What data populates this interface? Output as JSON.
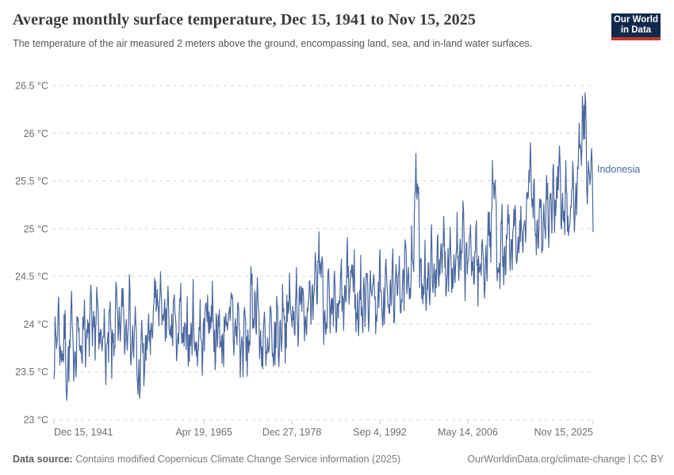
{
  "header": {
    "logo": {
      "line1": "Our World",
      "line2": "in Data",
      "bg": "#13294C",
      "stripe": "#C3392F"
    }
  },
  "footer": {
    "source_label": "Data source:",
    "source_text": " Contains modified Copernicus Climate Change Service information (2025)",
    "right_text": "OurWorldinData.org/climate-change | CC BY"
  },
  "chart_data": {
    "type": "line",
    "title": "Average monthly surface temperature, Dec 15, 1941 to Nov 15, 2025",
    "subtitle": "The temperature of the air measured 2 meters above the ground, encompassing land, sea, and in-land water surfaces.",
    "entity": "Indonesia",
    "unit": "°C",
    "line_color": "#4A679E",
    "grid": true,
    "legend_position": "line-end-label",
    "ylim": [
      23,
      26.5
    ],
    "x_range": [
      1941.955,
      2025.871
    ],
    "y_ticks": [
      {
        "value": 23,
        "label": "23 °C"
      },
      {
        "value": 23.5,
        "label": "23.5 °C"
      },
      {
        "value": 24,
        "label": "24 °C"
      },
      {
        "value": 24.5,
        "label": "24.5 °C"
      },
      {
        "value": 25,
        "label": "25 °C"
      },
      {
        "value": 25.5,
        "label": "25.5 °C"
      },
      {
        "value": 26,
        "label": "26 °C"
      },
      {
        "value": 26.5,
        "label": "26.5 °C"
      }
    ],
    "x_ticks": [
      {
        "t": 1941.955,
        "label": "Dec 15, 1941",
        "anchor": "start"
      },
      {
        "t": 1965.296,
        "label": "Apr 19, 1965",
        "anchor": "middle"
      },
      {
        "t": 1978.989,
        "label": "Dec 27, 1978",
        "anchor": "middle"
      },
      {
        "t": 1992.675,
        "label": "Sep 4, 1992",
        "anchor": "middle"
      },
      {
        "t": 2006.364,
        "label": "May 14, 2006",
        "anchor": "middle"
      },
      {
        "t": 2025.871,
        "label": "Nov 15, 2025",
        "anchor": "end"
      }
    ],
    "series": [
      {
        "name": "Indonesia",
        "label_value": 25.62,
        "value_start": 23.9,
        "value_end": 25.0,
        "value_min": 23.15,
        "value_max": 26.5,
        "annual_means_start_year": 1942,
        "annual_means": [
          23.9,
          23.8,
          23.85,
          23.8,
          23.9,
          23.9,
          24.0,
          23.85,
          23.75,
          23.95,
          24.05,
          24.1,
          23.8,
          23.7,
          23.75,
          24.0,
          24.15,
          24.0,
          24.0,
          23.95,
          23.85,
          23.95,
          23.8,
          23.95,
          24.05,
          23.85,
          23.9,
          24.1,
          23.95,
          23.75,
          23.95,
          24.15,
          23.75,
          23.75,
          23.85,
          24.05,
          24.1,
          24.15,
          24.25,
          24.2,
          24.2,
          24.35,
          24.15,
          24.1,
          24.2,
          24.35,
          24.3,
          24.15,
          24.35,
          24.35,
          24.25,
          24.3,
          24.3,
          24.45,
          24.4,
          24.55,
          24.9,
          24.4,
          24.5,
          24.6,
          24.7,
          24.7,
          24.65,
          24.75,
          24.7,
          24.7,
          24.6,
          24.8,
          25.0,
          24.7,
          24.8,
          24.85,
          24.9,
          25.0,
          25.2,
          25.05,
          25.1,
          25.2,
          25.3,
          25.2,
          25.25,
          25.45,
          25.8,
          25.55
        ],
        "seasonal": {
          "annual_amp": 0.18,
          "semiannual_amp": 0.14,
          "annual_phase": 0.37,
          "semiannual_phase": 0.05
        },
        "noise": {
          "seed": 7,
          "amp": 0.26
        },
        "events": [
          {
            "t": 1944.0,
            "amp": -0.22,
            "sigma": 4
          },
          {
            "t": 1955.2,
            "amp": -0.22,
            "sigma": 4
          },
          {
            "t": 1958.0,
            "amp": 0.28,
            "sigma": 3
          },
          {
            "t": 1966.0,
            "amp": 0.2,
            "sigma": 3
          },
          {
            "t": 1973.0,
            "amp": 0.25,
            "sigma": 3
          },
          {
            "t": 1983.2,
            "amp": 0.55,
            "sigma": 2.5
          },
          {
            "t": 1988.2,
            "amp": 0.3,
            "sigma": 3
          },
          {
            "t": 1998.3,
            "amp": 0.78,
            "sigma": 2.5
          },
          {
            "t": 2010.3,
            "amp": 0.6,
            "sigma": 2.5
          },
          {
            "t": 2016.05,
            "amp": 0.65,
            "sigma": 2.5
          },
          {
            "t": 2020.3,
            "amp": 0.3,
            "sigma": 3
          },
          {
            "t": 2024.2,
            "amp": 0.5,
            "sigma": 3
          },
          {
            "t": 2025.9,
            "amp": -0.5,
            "sigma": 2
          }
        ]
      }
    ]
  }
}
